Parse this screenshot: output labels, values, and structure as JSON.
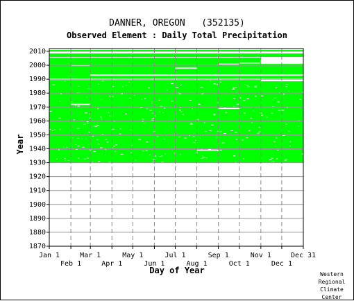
{
  "chart_data": {
    "type": "heatmap",
    "title": "DANNER, OREGON   (352135)",
    "subtitle": "Observed Element : Daily Total Precipitation",
    "xlabel": "Day of Year",
    "ylabel": "Year",
    "xlim": [
      1,
      366
    ],
    "ylim": [
      1870,
      2012
    ],
    "yticks": [
      2010,
      2000,
      1990,
      1980,
      1970,
      1960,
      1950,
      1940,
      1930,
      1920,
      1910,
      1900,
      1890,
      1880,
      1870
    ],
    "xticks_upper": [
      {
        "label": "Jan 1",
        "day": 1
      },
      {
        "label": "Mar 1",
        "day": 60
      },
      {
        "label": "May 1",
        "day": 121
      },
      {
        "label": "Jul 1",
        "day": 182
      },
      {
        "label": "Sep 1",
        "day": 244
      },
      {
        "label": "Nov 1",
        "day": 305
      },
      {
        "label": "Dec 31",
        "day": 366
      }
    ],
    "xticks_lower": [
      {
        "label": "Feb 1",
        "day": 32
      },
      {
        "label": "Apr 1",
        "day": 91
      },
      {
        "label": "Jun 1",
        "day": 152
      },
      {
        "label": "Aug 1",
        "day": 213
      },
      {
        "label": "Oct 1",
        "day": 274
      },
      {
        "label": "Dec 1",
        "day": 335
      }
    ],
    "data_color": "#00ff00",
    "grid": true,
    "observed_rows": [
      {
        "y0": 1930,
        "y1": 1989.5,
        "d0": 1,
        "d1": 366
      },
      {
        "y0": 1990.5,
        "y1": 1992.5,
        "d0": 1,
        "d1": 366
      },
      {
        "y0": 1992.5,
        "y1": 2001,
        "d0": 1,
        "d1": 366
      },
      {
        "y0": 2001,
        "y1": 2005.5,
        "d0": 1,
        "d1": 366
      },
      {
        "y0": 2006,
        "y1": 2008.5,
        "d0": 1,
        "d1": 366
      },
      {
        "y0": 2010,
        "y1": 2011,
        "d0": 1,
        "d1": 366
      }
    ],
    "missing_segments": [
      {
        "y0": 1989.5,
        "y1": 1990.5,
        "d0": 1,
        "d1": 366
      },
      {
        "y0": 1992.5,
        "y1": 1993.5,
        "d0": 60,
        "d1": 366
      },
      {
        "y0": 2005.5,
        "y1": 2006,
        "d0": 1,
        "d1": 366
      },
      {
        "y0": 2008.5,
        "y1": 2010,
        "d0": 1,
        "d1": 366
      },
      {
        "y0": 2001,
        "y1": 2005.5,
        "d0": 305,
        "d1": 366
      },
      {
        "y0": 1988.5,
        "y1": 1989.5,
        "d0": 305,
        "d1": 366
      },
      {
        "y0": 1971.5,
        "y1": 1972.3,
        "d0": 32,
        "d1": 60
      },
      {
        "y0": 1968.6,
        "y1": 1969.3,
        "d0": 244,
        "d1": 274
      },
      {
        "y0": 1938.6,
        "y1": 1939.4,
        "d0": 213,
        "d1": 244
      },
      {
        "y0": 1997.5,
        "y1": 1998.5,
        "d0": 182,
        "d1": 213
      },
      {
        "y0": 1999.5,
        "y1": 2000.2,
        "d0": 32,
        "d1": 60
      },
      {
        "y0": 2000.5,
        "y1": 2001.2,
        "d0": 244,
        "d1": 274
      },
      {
        "y0": 2001.3,
        "y1": 2001.8,
        "d0": 274,
        "d1": 305
      }
    ],
    "scattered_gaps": {
      "y0": 1930,
      "y1": 1989,
      "count": 260,
      "seed": 7
    }
  },
  "credit": {
    "line1": "Western",
    "line2": "Regional",
    "line3": "Climate",
    "line4": "Center"
  }
}
